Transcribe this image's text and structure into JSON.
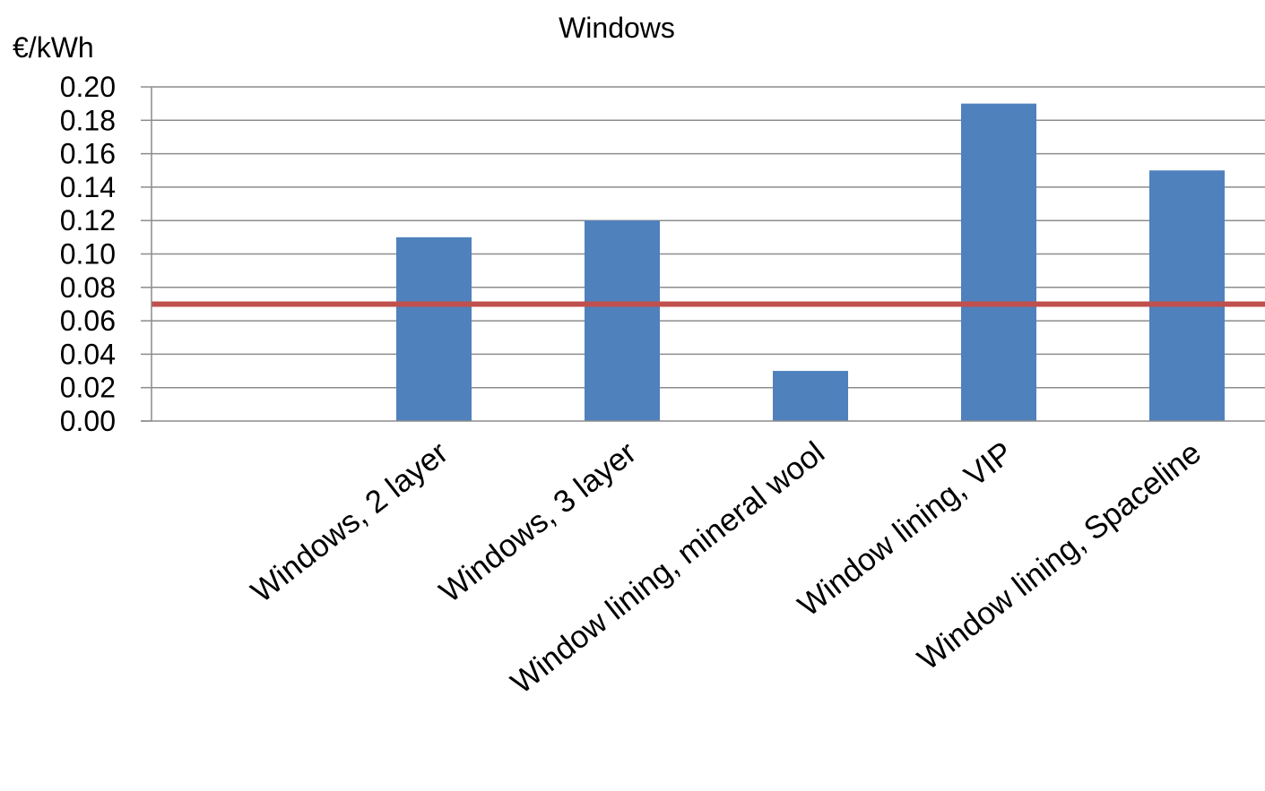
{
  "chart_data": {
    "type": "bar",
    "title": "Windows",
    "ylabel": "€/kWh",
    "xlabel": "",
    "categories": [
      "",
      "Windows, 2 layer",
      "Windows, 3 layer",
      "Window lining, mineral wool",
      "Window lining, VIP",
      "Window lining, Spaceline"
    ],
    "values": [
      null,
      0.11,
      0.12,
      0.03,
      0.19,
      0.15
    ],
    "ylim": [
      0,
      0.2
    ],
    "yticks": [
      "0.00",
      "0.02",
      "0.04",
      "0.06",
      "0.08",
      "0.10",
      "0.12",
      "0.14",
      "0.16",
      "0.18",
      "0.20"
    ],
    "reference_line": 0.07,
    "grid": true,
    "colors": {
      "bar": "#4f81bd",
      "reference_line": "#c0504d"
    }
  }
}
